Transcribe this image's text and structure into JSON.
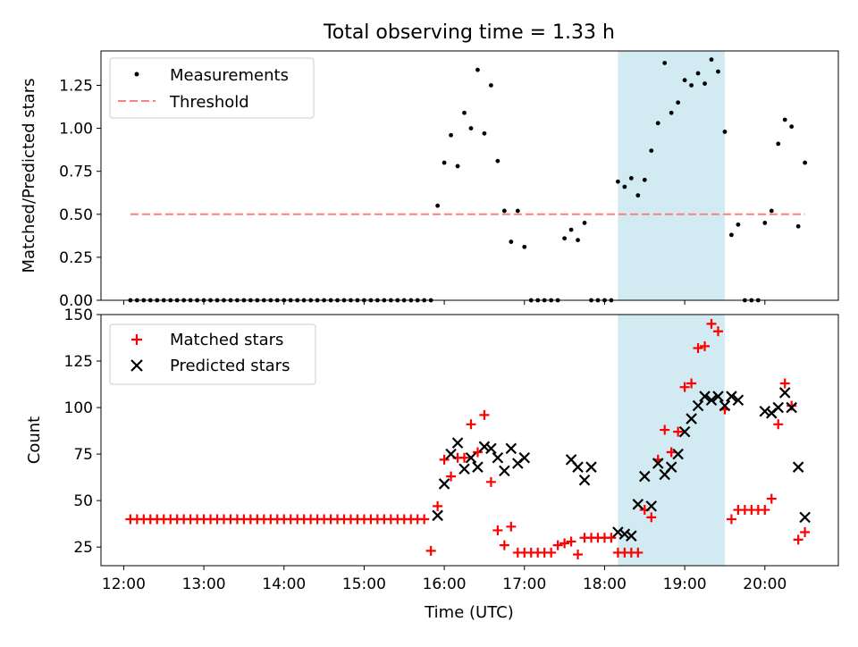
{
  "title": "Total observing time = 1.33 h",
  "colors": {
    "threshold": "#ff7f7f",
    "matched": "#ff0000",
    "predicted": "#000000",
    "shade": "#add8e6",
    "measurement": "#000000"
  },
  "chart_data": [
    {
      "type": "scatter",
      "panel": "top",
      "ylabel": "Matched/Predicted stars",
      "xlabel": "",
      "xlim": [
        "11:43",
        "20:55"
      ],
      "ylim": [
        0,
        1.45
      ],
      "yticks": [
        "0.00",
        "0.25",
        "0.50",
        "0.75",
        "1.00",
        "1.25"
      ],
      "legend": {
        "position": "top-left",
        "entries": [
          "Measurements",
          "Threshold"
        ]
      },
      "shaded_interval": [
        "18:10",
        "19:30"
      ],
      "threshold": {
        "name": "Threshold",
        "value": 0.5,
        "x": [
          "12:05",
          "20:30"
        ]
      },
      "series": [
        {
          "name": "Measurements",
          "points": [
            [
              "12:05",
              0
            ],
            [
              "12:10",
              0
            ],
            [
              "12:15",
              0
            ],
            [
              "12:20",
              0
            ],
            [
              "12:25",
              0
            ],
            [
              "12:30",
              0
            ],
            [
              "12:35",
              0
            ],
            [
              "12:40",
              0
            ],
            [
              "12:45",
              0
            ],
            [
              "12:50",
              0
            ],
            [
              "12:55",
              0
            ],
            [
              "13:00",
              0
            ],
            [
              "13:05",
              0
            ],
            [
              "13:10",
              0
            ],
            [
              "13:15",
              0
            ],
            [
              "13:20",
              0
            ],
            [
              "13:25",
              0
            ],
            [
              "13:30",
              0
            ],
            [
              "13:35",
              0
            ],
            [
              "13:40",
              0
            ],
            [
              "13:45",
              0
            ],
            [
              "13:50",
              0
            ],
            [
              "13:55",
              0
            ],
            [
              "14:00",
              0
            ],
            [
              "14:05",
              0
            ],
            [
              "14:10",
              0
            ],
            [
              "14:15",
              0
            ],
            [
              "14:20",
              0
            ],
            [
              "14:25",
              0
            ],
            [
              "14:30",
              0
            ],
            [
              "14:35",
              0
            ],
            [
              "14:40",
              0
            ],
            [
              "14:45",
              0
            ],
            [
              "14:50",
              0
            ],
            [
              "14:55",
              0
            ],
            [
              "15:00",
              0
            ],
            [
              "15:05",
              0
            ],
            [
              "15:10",
              0
            ],
            [
              "15:15",
              0
            ],
            [
              "15:20",
              0
            ],
            [
              "15:25",
              0
            ],
            [
              "15:30",
              0
            ],
            [
              "15:35",
              0
            ],
            [
              "15:40",
              0
            ],
            [
              "15:45",
              0
            ],
            [
              "15:50",
              0
            ],
            [
              "15:55",
              0.55
            ],
            [
              "16:00",
              0.8
            ],
            [
              "16:05",
              0.96
            ],
            [
              "16:10",
              0.78
            ],
            [
              "16:15",
              1.09
            ],
            [
              "16:20",
              1.0
            ],
            [
              "16:25",
              1.34
            ],
            [
              "16:30",
              0.97
            ],
            [
              "16:35",
              1.25
            ],
            [
              "16:40",
              0.81
            ],
            [
              "16:45",
              0.52
            ],
            [
              "16:50",
              0.34
            ],
            [
              "16:55",
              0.52
            ],
            [
              "17:00",
              0.31
            ],
            [
              "17:05",
              0
            ],
            [
              "17:10",
              0
            ],
            [
              "17:15",
              0
            ],
            [
              "17:20",
              0
            ],
            [
              "17:25",
              0
            ],
            [
              "17:30",
              0.36
            ],
            [
              "17:35",
              0.41
            ],
            [
              "17:40",
              0.35
            ],
            [
              "17:45",
              0.45
            ],
            [
              "17:50",
              0
            ],
            [
              "17:55",
              0
            ],
            [
              "18:00",
              0
            ],
            [
              "18:05",
              0
            ],
            [
              "18:10",
              0.69
            ],
            [
              "18:15",
              0.66
            ],
            [
              "18:20",
              0.71
            ],
            [
              "18:25",
              0.61
            ],
            [
              "18:30",
              0.7
            ],
            [
              "18:35",
              0.87
            ],
            [
              "18:40",
              1.03
            ],
            [
              "18:45",
              1.38
            ],
            [
              "18:50",
              1.09
            ],
            [
              "18:55",
              1.15
            ],
            [
              "19:00",
              1.28
            ],
            [
              "19:05",
              1.25
            ],
            [
              "19:10",
              1.32
            ],
            [
              "19:15",
              1.26
            ],
            [
              "19:20",
              1.4
            ],
            [
              "19:25",
              1.33
            ],
            [
              "19:30",
              0.98
            ],
            [
              "19:35",
              0.38
            ],
            [
              "19:40",
              0.44
            ],
            [
              "19:45",
              0
            ],
            [
              "19:50",
              0
            ],
            [
              "19:55",
              0
            ],
            [
              "20:00",
              0.45
            ],
            [
              "20:05",
              0.52
            ],
            [
              "20:10",
              0.91
            ],
            [
              "20:15",
              1.05
            ],
            [
              "20:20",
              1.01
            ],
            [
              "20:25",
              0.43
            ],
            [
              "20:30",
              0.8
            ]
          ]
        }
      ]
    },
    {
      "type": "scatter",
      "panel": "bottom",
      "ylabel": "Count",
      "xlabel": "Time (UTC)",
      "xlim": [
        "11:43",
        "20:55"
      ],
      "ylim": [
        15,
        150
      ],
      "yticks": [
        "25",
        "50",
        "75",
        "100",
        "125",
        "150"
      ],
      "xticks": [
        "12:00",
        "13:00",
        "14:00",
        "15:00",
        "16:00",
        "17:00",
        "18:00",
        "19:00",
        "20:00"
      ],
      "legend": {
        "position": "top-left",
        "entries": [
          "Matched stars",
          "Predicted stars"
        ]
      },
      "shaded_interval": [
        "18:10",
        "19:30"
      ],
      "series": [
        {
          "name": "Matched stars",
          "marker": "plus",
          "points": [
            [
              "12:05",
              40
            ],
            [
              "12:10",
              40
            ],
            [
              "12:15",
              40
            ],
            [
              "12:20",
              40
            ],
            [
              "12:25",
              40
            ],
            [
              "12:30",
              40
            ],
            [
              "12:35",
              40
            ],
            [
              "12:40",
              40
            ],
            [
              "12:45",
              40
            ],
            [
              "12:50",
              40
            ],
            [
              "12:55",
              40
            ],
            [
              "13:00",
              40
            ],
            [
              "13:05",
              40
            ],
            [
              "13:10",
              40
            ],
            [
              "13:15",
              40
            ],
            [
              "13:20",
              40
            ],
            [
              "13:25",
              40
            ],
            [
              "13:30",
              40
            ],
            [
              "13:35",
              40
            ],
            [
              "13:40",
              40
            ],
            [
              "13:45",
              40
            ],
            [
              "13:50",
              40
            ],
            [
              "13:55",
              40
            ],
            [
              "14:00",
              40
            ],
            [
              "14:05",
              40
            ],
            [
              "14:10",
              40
            ],
            [
              "14:15",
              40
            ],
            [
              "14:20",
              40
            ],
            [
              "14:25",
              40
            ],
            [
              "14:30",
              40
            ],
            [
              "14:35",
              40
            ],
            [
              "14:40",
              40
            ],
            [
              "14:45",
              40
            ],
            [
              "14:50",
              40
            ],
            [
              "14:55",
              40
            ],
            [
              "15:00",
              40
            ],
            [
              "15:05",
              40
            ],
            [
              "15:10",
              40
            ],
            [
              "15:15",
              40
            ],
            [
              "15:20",
              40
            ],
            [
              "15:25",
              40
            ],
            [
              "15:30",
              40
            ],
            [
              "15:35",
              40
            ],
            [
              "15:40",
              40
            ],
            [
              "15:45",
              40
            ],
            [
              "15:50",
              23
            ],
            [
              "15:55",
              47
            ],
            [
              "16:00",
              72
            ],
            [
              "16:05",
              63
            ],
            [
              "16:10",
              73
            ],
            [
              "16:15",
              73
            ],
            [
              "16:20",
              91
            ],
            [
              "16:25",
              76
            ],
            [
              "16:30",
              96
            ],
            [
              "16:35",
              60
            ],
            [
              "16:40",
              34
            ],
            [
              "16:45",
              26
            ],
            [
              "16:50",
              36
            ],
            [
              "16:55",
              22
            ],
            [
              "17:00",
              22
            ],
            [
              "17:05",
              22
            ],
            [
              "17:10",
              22
            ],
            [
              "17:15",
              22
            ],
            [
              "17:20",
              22
            ],
            [
              "17:25",
              26
            ],
            [
              "17:30",
              27
            ],
            [
              "17:35",
              28
            ],
            [
              "17:40",
              21
            ],
            [
              "17:45",
              30
            ],
            [
              "17:50",
              30
            ],
            [
              "17:55",
              30
            ],
            [
              "18:00",
              30
            ],
            [
              "18:05",
              30
            ],
            [
              "18:10",
              22
            ],
            [
              "18:15",
              22
            ],
            [
              "18:20",
              22
            ],
            [
              "18:25",
              22
            ],
            [
              "18:30",
              45
            ],
            [
              "18:35",
              41
            ],
            [
              "18:40",
              72
            ],
            [
              "18:45",
              88
            ],
            [
              "18:50",
              76
            ],
            [
              "18:55",
              87
            ],
            [
              "19:00",
              111
            ],
            [
              "19:05",
              113
            ],
            [
              "19:10",
              132
            ],
            [
              "19:15",
              133
            ],
            [
              "19:20",
              145
            ],
            [
              "19:25",
              141
            ],
            [
              "19:30",
              99
            ],
            [
              "19:35",
              40
            ],
            [
              "19:40",
              45
            ],
            [
              "19:45",
              45
            ],
            [
              "19:50",
              45
            ],
            [
              "19:55",
              45
            ],
            [
              "20:00",
              45
            ],
            [
              "20:05",
              51
            ],
            [
              "20:10",
              91
            ],
            [
              "20:15",
              113
            ],
            [
              "20:20",
              101
            ],
            [
              "20:25",
              29
            ],
            [
              "20:30",
              33
            ]
          ]
        },
        {
          "name": "Predicted stars",
          "marker": "x",
          "points": [
            [
              "15:55",
              42
            ],
            [
              "16:00",
              59
            ],
            [
              "16:05",
              75
            ],
            [
              "16:10",
              81
            ],
            [
              "16:15",
              67
            ],
            [
              "16:20",
              73
            ],
            [
              "16:25",
              68
            ],
            [
              "16:30",
              79
            ],
            [
              "16:35",
              78
            ],
            [
              "16:40",
              73
            ],
            [
              "16:45",
              66
            ],
            [
              "16:50",
              78
            ],
            [
              "16:55",
              70
            ],
            [
              "17:00",
              73
            ],
            [
              "17:35",
              72
            ],
            [
              "17:40",
              68
            ],
            [
              "17:45",
              61
            ],
            [
              "17:50",
              68
            ],
            [
              "18:10",
              33
            ],
            [
              "18:15",
              32
            ],
            [
              "18:20",
              31
            ],
            [
              "18:25",
              48
            ],
            [
              "18:30",
              63
            ],
            [
              "18:35",
              47
            ],
            [
              "18:40",
              70
            ],
            [
              "18:45",
              64
            ],
            [
              "18:50",
              68
            ],
            [
              "18:55",
              75
            ],
            [
              "19:00",
              87
            ],
            [
              "19:05",
              94
            ],
            [
              "19:10",
              101
            ],
            [
              "19:15",
              106
            ],
            [
              "19:20",
              104
            ],
            [
              "19:25",
              106
            ],
            [
              "19:30",
              101
            ],
            [
              "19:35",
              106
            ],
            [
              "19:40",
              104
            ],
            [
              "20:00",
              98
            ],
            [
              "20:05",
              97
            ],
            [
              "20:10",
              100
            ],
            [
              "20:15",
              108
            ],
            [
              "20:20",
              100
            ],
            [
              "20:25",
              68
            ],
            [
              "20:30",
              41
            ]
          ]
        }
      ]
    }
  ]
}
